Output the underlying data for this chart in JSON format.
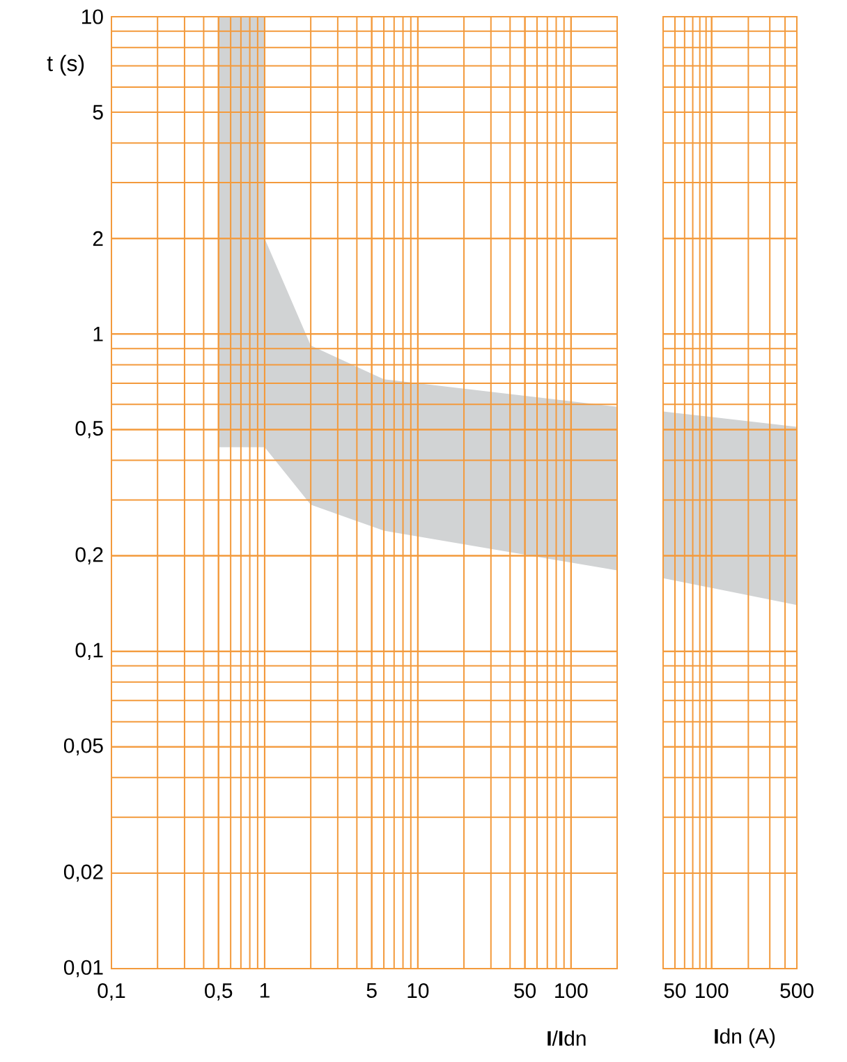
{
  "chart_data": [
    {
      "type": "line",
      "xlabel": "**I**/**I**dn",
      "ylabel": "t (s)",
      "log": "xy",
      "grid": true,
      "xlim": [
        0.1,
        200
      ],
      "ylim": [
        0.01,
        10
      ],
      "xticks": [
        {
          "value": 0.1,
          "label": "0,1"
        },
        {
          "value": 0.5,
          "label": "0,5"
        },
        1,
        5,
        10,
        50,
        100
      ],
      "yticks": [
        {
          "value": 0.01,
          "label": "0,01"
        },
        {
          "value": 0.02,
          "label": "0,02"
        },
        {
          "value": 0.05,
          "label": "0,05"
        },
        {
          "value": 0.1,
          "label": "0,1"
        },
        {
          "value": 0.2,
          "label": "0,2"
        },
        {
          "value": 0.5,
          "label": "0,5"
        },
        1,
        2,
        5,
        10
      ],
      "series": [
        {
          "color": "#d1d3d4",
          "x": [
            0.5,
            1,
            1,
            2,
            6,
            200
          ],
          "values": [
            null,
            null,
            null,
            null,
            null,
            null
          ],
          "upper": [
            10,
            10,
            2,
            0.92,
            0.72,
            0.59
          ],
          "lower": [
            0.44,
            0.44,
            0.44,
            0.29,
            0.24,
            0.18
          ]
        }
      ]
    },
    {
      "type": "line",
      "xlabel": "**I**dn (A)",
      "log": "xy",
      "grid": true,
      "tick_labels": "x",
      "xlim": [
        40,
        500
      ],
      "ylim": [
        0.01,
        10
      ],
      "xticks": [
        50,
        100,
        500
      ],
      "yticks": [
        0.01,
        0.02,
        0.05,
        0.1,
        0.2,
        0.5,
        1,
        2,
        5,
        10
      ],
      "series": [
        {
          "color": "#d1d3d4",
          "x": [
            40,
            500
          ],
          "values": [
            null,
            null
          ],
          "upper": [
            0.57,
            0.51
          ],
          "lower": [
            0.17,
            0.14
          ]
        }
      ]
    }
  ]
}
